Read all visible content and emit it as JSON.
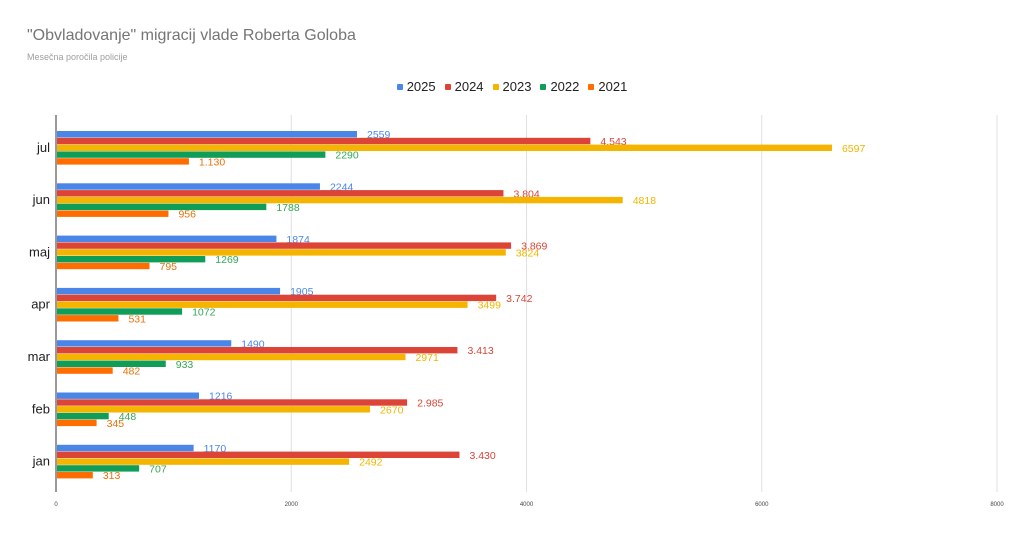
{
  "chart_data": {
    "type": "bar",
    "orientation": "horizontal",
    "title": "\"Obvladovanje\" migracij vlade Roberta Goloba",
    "subtitle": "Mesečna poročila policije",
    "categories": [
      "jul",
      "jun",
      "maj",
      "apr",
      "mar",
      "feb",
      "jan"
    ],
    "series": [
      {
        "name": "2025",
        "color": "#4a86e8",
        "values": [
          2559,
          2244,
          1874,
          1905,
          1490,
          1216,
          1170
        ],
        "labels": [
          "2559",
          "2244",
          "1874",
          "1905",
          "1490",
          "1216",
          "1170"
        ]
      },
      {
        "name": "2024",
        "color": "#db4437",
        "values": [
          4543,
          3804,
          3869,
          3742,
          3413,
          2985,
          3430
        ],
        "labels": [
          "4.543",
          "3.804",
          "3.869",
          "3.742",
          "3.413",
          "2.985",
          "3.430"
        ]
      },
      {
        "name": "2023",
        "color": "#f4b400",
        "values": [
          6597,
          4818,
          3824,
          3499,
          2971,
          2670,
          2492
        ],
        "labels": [
          "6597",
          "4818",
          "3824",
          "3499",
          "2971",
          "2670",
          "2492"
        ]
      },
      {
        "name": "2022",
        "color": "#0f9d58",
        "values": [
          2290,
          1788,
          1269,
          1072,
          933,
          448,
          707
        ],
        "labels": [
          "2290",
          "1788",
          "1269",
          "1072",
          "933",
          "448",
          "707"
        ]
      },
      {
        "name": "2021",
        "color": "#ff6d01",
        "values": [
          1130,
          956,
          795,
          531,
          482,
          345,
          313
        ],
        "labels": [
          "1.130",
          "956",
          "795",
          "531",
          "482",
          "345",
          "313"
        ]
      }
    ],
    "xlim": [
      0,
      8000
    ],
    "xticks": [
      0,
      2000,
      4000,
      6000,
      8000
    ],
    "grid": true,
    "legend_position": "top-center"
  },
  "label_colors": {
    "2025": "#4a86e8",
    "2024": "#db4437",
    "2023": "#f4b400",
    "2022": "#34a853",
    "2021": "#e8710a"
  }
}
